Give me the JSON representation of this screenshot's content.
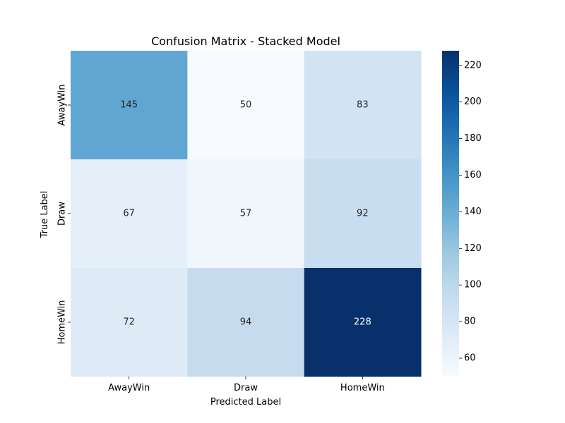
{
  "chart_data": {
    "type": "heatmap",
    "title": "Confusion Matrix - Stacked Model",
    "xlabel": "Predicted Label",
    "ylabel": "True Label",
    "x_categories": [
      "AwayWin",
      "Draw",
      "HomeWin"
    ],
    "y_categories": [
      "AwayWin",
      "Draw",
      "HomeWin"
    ],
    "values": [
      [
        145,
        50,
        83
      ],
      [
        67,
        57,
        92
      ],
      [
        72,
        94,
        228
      ]
    ],
    "colorscale": "Blues",
    "colorbar": {
      "min": 50,
      "max": 228,
      "ticks": [
        60,
        80,
        100,
        120,
        140,
        160,
        180,
        200,
        220
      ]
    }
  }
}
